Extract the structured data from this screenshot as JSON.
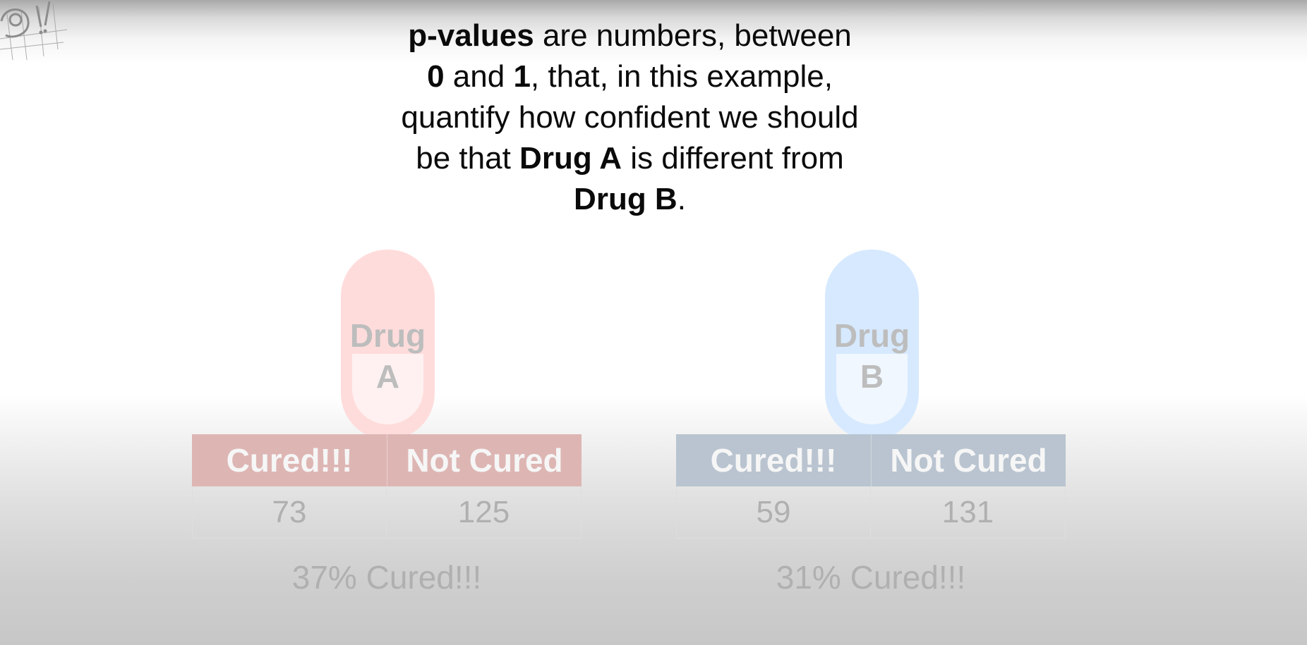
{
  "logo": {
    "icon": "doodle-logo-icon"
  },
  "headline": {
    "segments": [
      {
        "text": "p-values",
        "bold": true
      },
      {
        "text": " are numbers, between ",
        "bold": false
      },
      {
        "text": "0",
        "bold": true
      },
      {
        "text": " and ",
        "bold": false
      },
      {
        "text": "1",
        "bold": true
      },
      {
        "text": ", that, in this example, quantify how confident we should be that ",
        "bold": false
      },
      {
        "text": "Drug A",
        "bold": true
      },
      {
        "text": " is different from ",
        "bold": false
      },
      {
        "text": "Drug B",
        "bold": true
      },
      {
        "text": ".",
        "bold": false
      }
    ]
  },
  "drugs": [
    {
      "pill_line1": "Drug",
      "pill_line2": "A",
      "pill_color": "#ffdcdc",
      "header_color": "#ddb6b4",
      "col1_header": "Cured!!!",
      "col2_header": "Not Cured",
      "cured": "73",
      "not_cured": "125",
      "summary": "37% Cured!!!"
    },
    {
      "pill_line1": "Drug",
      "pill_line2": "B",
      "pill_color": "#d6e9ff",
      "header_color": "#b9c4d0",
      "col1_header": "Cured!!!",
      "col2_header": "Not Cured",
      "cured": "59",
      "not_cured": "131",
      "summary": "31% Cured!!!"
    }
  ]
}
